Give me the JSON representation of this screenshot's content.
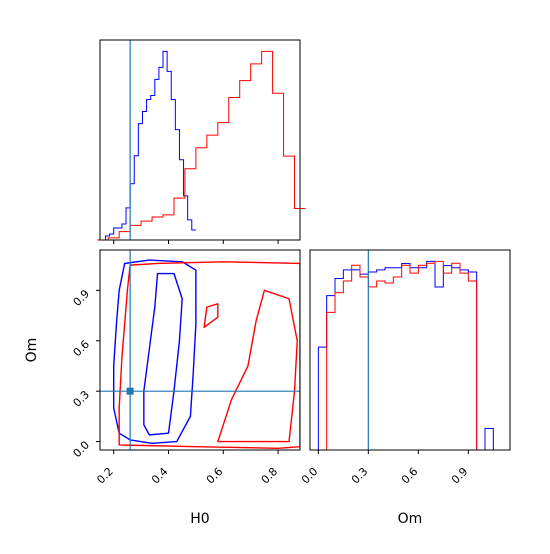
{
  "chart_data": {
    "type": "corner",
    "colors": {
      "series_a": "#0000ff",
      "series_b": "#ff0000",
      "truth": "#1f77b4"
    },
    "truth": {
      "H0": 0.26,
      "Om": 0.3
    },
    "panels": [
      {
        "id": "h0_hist",
        "type": "histogram",
        "xlim": [
          0.15,
          0.88
        ],
        "xticks": [
          0.2,
          0.4,
          0.6,
          0.8
        ],
        "truth_x": 0.26,
        "series": [
          {
            "color": "#0000ff",
            "bin_edges": [
              0.14,
              0.155,
              0.17,
              0.185,
              0.2,
              0.215,
              0.23,
              0.245,
              0.26,
              0.275,
              0.29,
              0.305,
              0.32,
              0.335,
              0.35,
              0.365,
              0.38,
              0.395,
              0.41,
              0.425,
              0.44,
              0.455,
              0.47,
              0.485,
              0.5
            ],
            "counts": [
              0,
              0,
              2,
              3,
              6,
              6,
              8,
              16,
              28,
              42,
              58,
              64,
              70,
              72,
              80,
              86,
              94,
              84,
              70,
              55,
              40,
              22,
              10,
              5
            ]
          },
          {
            "color": "#ff0000",
            "bin_edges": [
              0.14,
              0.18,
              0.22,
              0.26,
              0.3,
              0.34,
              0.38,
              0.42,
              0.46,
              0.5,
              0.54,
              0.58,
              0.62,
              0.66,
              0.7,
              0.74,
              0.78,
              0.82,
              0.86,
              0.9
            ],
            "counts": [
              0,
              1,
              4,
              7,
              9,
              11,
              12,
              20,
              34,
              44,
              50,
              56,
              68,
              76,
              84,
              90,
              70,
              40,
              15
            ]
          }
        ]
      },
      {
        "id": "om_hist",
        "type": "histogram",
        "xlim": [
          -0.05,
          1.15
        ],
        "xticks": [
          0.0,
          0.3,
          0.6,
          0.9
        ],
        "xtick_labels": [
          "0.0",
          "0.3",
          "0.6",
          "0.9"
        ],
        "xlabel": "Om",
        "truth_x": 0.3,
        "series": [
          {
            "color": "#0000ff",
            "bin_edges": [
              -0.05,
              0.0,
              0.05,
              0.1,
              0.15,
              0.2,
              0.25,
              0.3,
              0.35,
              0.4,
              0.45,
              0.5,
              0.55,
              0.6,
              0.65,
              0.7,
              0.75,
              0.8,
              0.85,
              0.9,
              0.95,
              1.0,
              1.05,
              1.15
            ],
            "counts": [
              0,
              48,
              72,
              80,
              84,
              84,
              82,
              83,
              84,
              85,
              85,
              87,
              85,
              85,
              88,
              76,
              86,
              85,
              84,
              83,
              0,
              10,
              0
            ]
          },
          {
            "color": "#ff0000",
            "bin_edges": [
              0.0,
              0.05,
              0.1,
              0.15,
              0.2,
              0.25,
              0.3,
              0.35,
              0.4,
              0.45,
              0.5,
              0.55,
              0.6,
              0.65,
              0.7,
              0.75,
              0.8,
              0.85,
              0.9,
              0.95,
              1.0,
              1.05
            ],
            "counts": [
              0,
              70,
              80,
              86,
              94,
              88,
              83,
              86,
              85,
              88,
              94,
              90,
              94,
              95,
              96,
              90,
              95,
              90,
              86,
              0,
              0
            ]
          }
        ]
      },
      {
        "id": "h0_om_contour",
        "type": "contour",
        "xlim": [
          0.15,
          0.88
        ],
        "ylim": [
          -0.05,
          1.14
        ],
        "xticks": [
          0.2,
          0.4,
          0.6,
          0.8
        ],
        "xtick_labels": [
          "0.2",
          "0.4",
          "0.6",
          "0.8"
        ],
        "yticks": [
          0.0,
          0.3,
          0.6,
          0.9
        ],
        "ytick_labels": [
          "0.0",
          "0.3",
          "0.6",
          "0.9"
        ],
        "xlabel": "H0",
        "ylabel": "Om",
        "truth_point": [
          0.26,
          0.3
        ],
        "contours": [
          {
            "color": "#0000ff",
            "level": "outer",
            "points": [
              [
                0.26,
                0.01
              ],
              [
                0.34,
                -0.01
              ],
              [
                0.43,
                0.0
              ],
              [
                0.48,
                0.15
              ],
              [
                0.49,
                0.4
              ],
              [
                0.5,
                0.7
              ],
              [
                0.5,
                1.02
              ],
              [
                0.45,
                1.07
              ],
              [
                0.33,
                1.08
              ],
              [
                0.24,
                1.06
              ],
              [
                0.22,
                0.9
              ],
              [
                0.21,
                0.7
              ],
              [
                0.2,
                0.45
              ],
              [
                0.2,
                0.2
              ],
              [
                0.22,
                0.05
              ]
            ]
          },
          {
            "color": "#0000ff",
            "level": "inner",
            "points": [
              [
                0.33,
                0.04
              ],
              [
                0.4,
                0.05
              ],
              [
                0.42,
                0.3
              ],
              [
                0.44,
                0.6
              ],
              [
                0.45,
                0.85
              ],
              [
                0.42,
                1.0
              ],
              [
                0.36,
                1.0
              ],
              [
                0.35,
                0.8
              ],
              [
                0.33,
                0.55
              ],
              [
                0.31,
                0.3
              ],
              [
                0.31,
                0.1
              ]
            ]
          },
          {
            "color": "#ff0000",
            "level": "outer",
            "points": [
              [
                0.22,
                -0.02
              ],
              [
                0.5,
                -0.03
              ],
              [
                0.8,
                -0.04
              ],
              [
                0.88,
                -0.03
              ],
              [
                0.88,
                1.06
              ],
              [
                0.6,
                1.07
              ],
              [
                0.36,
                1.06
              ],
              [
                0.26,
                1.05
              ],
              [
                0.25,
                0.9
              ],
              [
                0.23,
                0.5
              ],
              [
                0.22,
                0.2
              ]
            ]
          },
          {
            "color": "#ff0000",
            "level": "inner",
            "points": [
              [
                0.58,
                0.0
              ],
              [
                0.84,
                0.0
              ],
              [
                0.86,
                0.3
              ],
              [
                0.87,
                0.6
              ],
              [
                0.84,
                0.85
              ],
              [
                0.75,
                0.9
              ],
              [
                0.72,
                0.72
              ],
              [
                0.69,
                0.45
              ],
              [
                0.63,
                0.25
              ],
              [
                0.6,
                0.1
              ]
            ]
          },
          {
            "color": "#ff0000",
            "level": "inner",
            "points": [
              [
                0.53,
                0.68
              ],
              [
                0.58,
                0.74
              ],
              [
                0.58,
                0.82
              ],
              [
                0.54,
                0.8
              ]
            ]
          }
        ]
      }
    ]
  }
}
